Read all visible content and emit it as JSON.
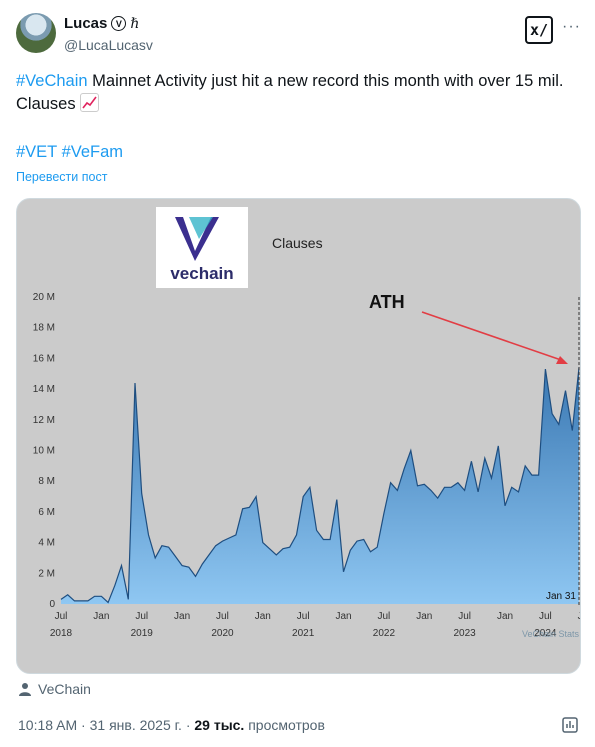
{
  "author": {
    "name": "Lucas",
    "badge": "V",
    "glyph": "ℏ",
    "handle": "@LucaLucasv"
  },
  "header_buttons": {
    "grok": "x/",
    "more": "···"
  },
  "tweet": {
    "hashtag_main": "#VeChain",
    "text": " Mainnet Activity just hit a new record this month with over 15 mil. Clauses",
    "hashtags": [
      "#VET",
      "#VeFam"
    ],
    "translate_label": "Перевести пост"
  },
  "media": {
    "logo_text": "vechain",
    "chart_title": "Clauses",
    "annotation": "ATH",
    "end_label": "Jan 31",
    "watermark": "VeChain Stats",
    "colors": {
      "fill_top": "#3a78b3",
      "fill_bottom": "#8fc7f2",
      "line": "#1e4e80",
      "bg": "#cbcbcb",
      "arrow": "#e23d44"
    }
  },
  "chart_data": {
    "type": "area",
    "title": "Clauses",
    "ylabels": [
      "0",
      "2 M",
      "4 M",
      "6 M",
      "8 M",
      "10 M",
      "12 M",
      "14 M",
      "16 M",
      "18 M",
      "20 M"
    ],
    "ylim": [
      0,
      20
    ],
    "xlabels_month": [
      "Jul",
      "Jan",
      "Jul",
      "Jan",
      "Jul",
      "Jan",
      "Jul",
      "Jan",
      "Jul",
      "Jan",
      "Jul",
      "Jan",
      "Jul",
      "Jan",
      "Jul"
    ],
    "xlabels_year": [
      "2018",
      "2019",
      "2020",
      "2021",
      "2022",
      "2023",
      "2024"
    ],
    "x_start": "2018-07",
    "x_step": "month",
    "values": [
      0.3,
      0.6,
      0.2,
      0.2,
      0.2,
      0.5,
      0.5,
      0.1,
      1.2,
      2.5,
      0.3,
      14.4,
      7.2,
      4.5,
      3.0,
      3.8,
      3.7,
      3.1,
      2.5,
      2.4,
      1.8,
      2.6,
      3.2,
      3.8,
      4.1,
      4.3,
      4.5,
      6.2,
      6.3,
      7.0,
      4.0,
      3.6,
      3.2,
      3.6,
      3.7,
      4.5,
      7.0,
      7.6,
      4.8,
      4.2,
      4.2,
      6.8,
      2.1,
      3.5,
      4.1,
      4.2,
      3.4,
      3.7,
      5.9,
      7.9,
      7.4,
      8.8,
      10.0,
      7.7,
      7.8,
      7.4,
      6.9,
      7.6,
      7.6,
      7.9,
      7.4,
      9.3,
      7.3,
      9.5,
      8.2,
      10.3,
      6.4,
      7.6,
      7.3,
      9.0,
      8.4,
      8.4,
      15.3,
      12.4,
      11.7,
      13.9,
      11.3,
      15.4
    ],
    "xlabel": "",
    "ylabel": "",
    "grid": false
  },
  "location": {
    "label": "VeChain"
  },
  "footer": {
    "time": "10:18 AM",
    "date": "31 янв. 2025 г.",
    "views": "29 тыс.",
    "views_label": "просмотров"
  }
}
